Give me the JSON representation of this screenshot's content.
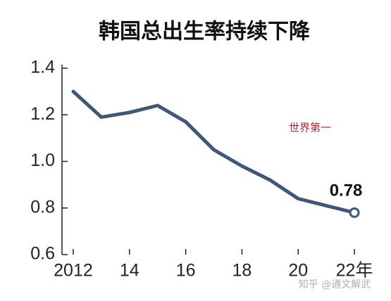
{
  "chart_data": {
    "type": "line",
    "title": "韩国总出生率持续下降",
    "x": [
      2012,
      2013,
      2014,
      2015,
      2016,
      2017,
      2018,
      2019,
      2020,
      2021,
      2022
    ],
    "series": [
      {
        "color": "#3f5878",
        "values": [
          1.3,
          1.19,
          1.21,
          1.24,
          1.17,
          1.05,
          0.98,
          0.92,
          0.84,
          0.81,
          0.78
        ]
      }
    ],
    "xlim": [
      2011.6,
      2022.6
    ],
    "xticks": [
      2012,
      {
        "value": 2014,
        "label": "14"
      },
      {
        "value": 2016,
        "label": "16"
      },
      {
        "value": 2018,
        "label": "18"
      },
      {
        "value": 2020,
        "label": "20"
      },
      {
        "value": 2022,
        "label": "22年"
      }
    ],
    "ylim": [
      0.6,
      1.4
    ],
    "yticks": [
      0.6,
      0.8,
      {
        "value": 1,
        "label": "1.0"
      },
      1.2,
      1.4
    ],
    "annotation": "世界第一",
    "annotation_color": "#c0282d",
    "watermark": "知乎 @通文解武"
  }
}
